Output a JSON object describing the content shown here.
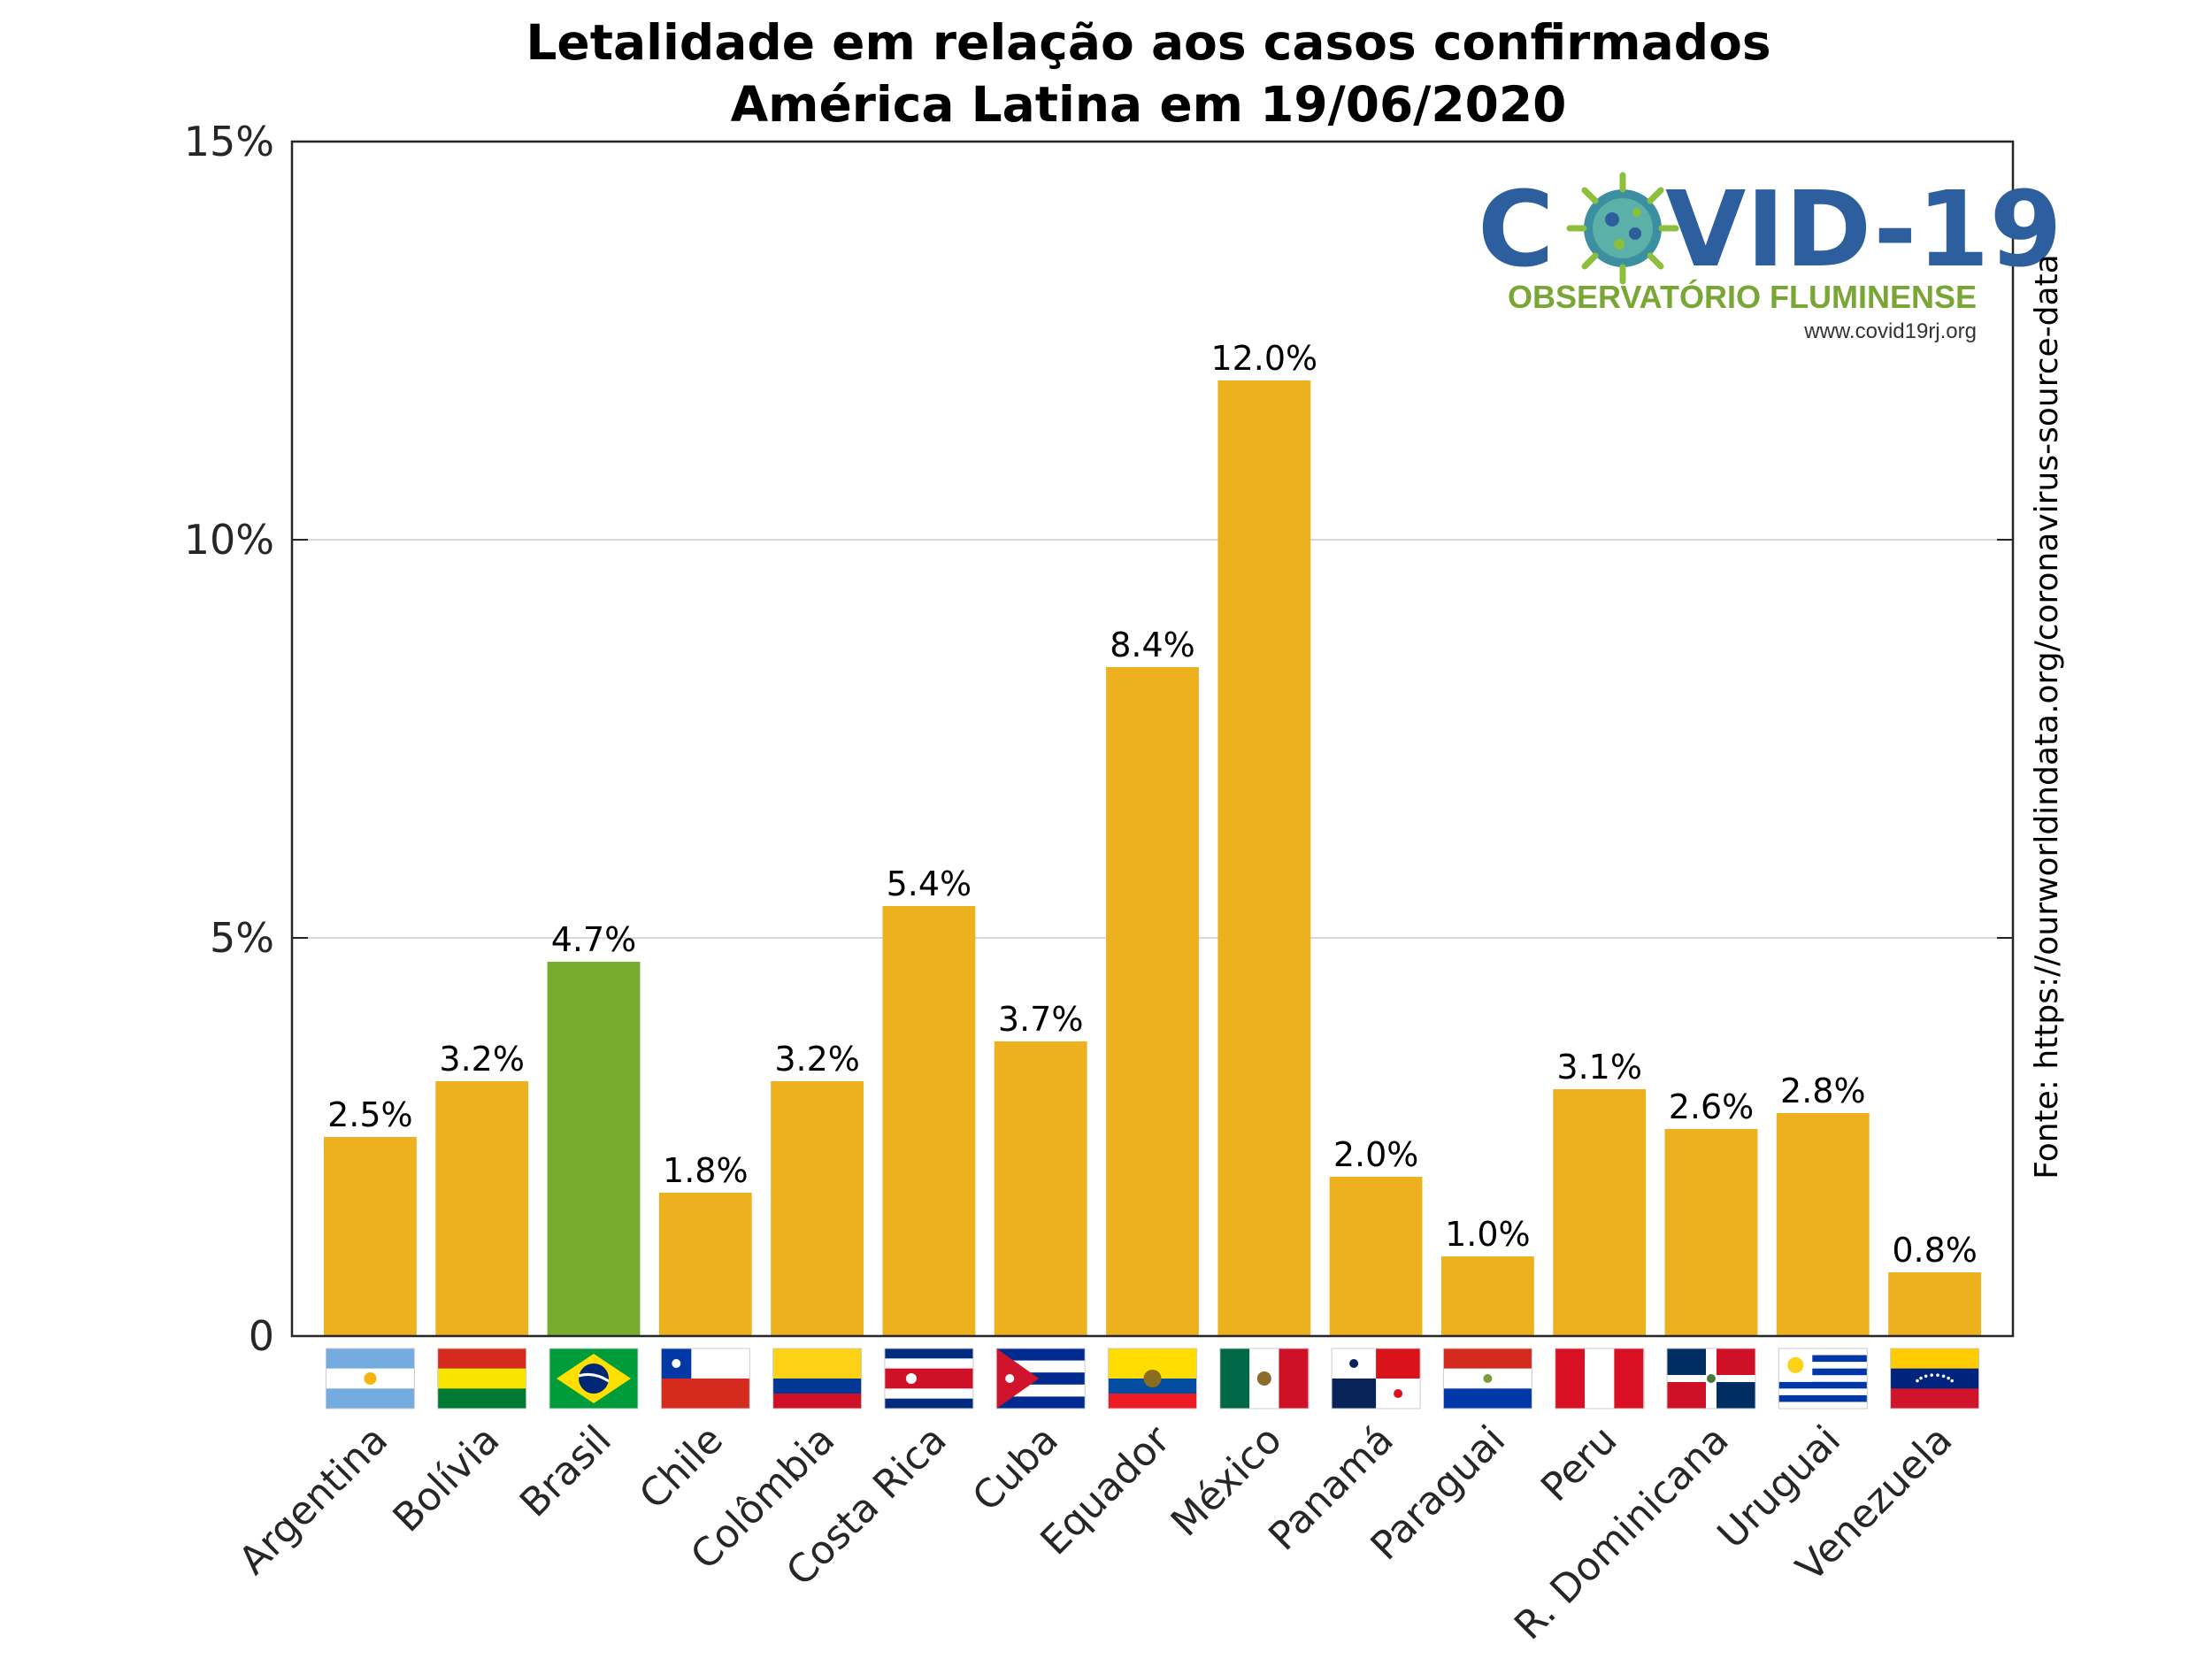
{
  "colors": {
    "bar_default": "#edb120",
    "bar_highlight": "#77ac30",
    "grid": "#d9d9d9",
    "axis": "#262626"
  },
  "logo": {
    "title_left": "C",
    "title_right": "VID-19",
    "subtitle": "OBSERVATÓRIO FLUMINENSE",
    "url": "www.covid19rj.org",
    "icon": "virus-icon"
  },
  "source_note": "Fonte: https://ourworldindata.org/coronavirus-source-data",
  "chart_data": {
    "type": "bar",
    "title": "Letalidade em relação aos casos confirmados",
    "subtitle": "América Latina em 19/06/2020",
    "xlabel": "",
    "ylabel": "",
    "ylim": [
      0,
      15
    ],
    "yticks": [
      0,
      5,
      10,
      15
    ],
    "ytick_labels": [
      "0",
      "5%",
      "10%",
      "15%"
    ],
    "grid": true,
    "highlight": "Brasil",
    "categories": [
      "Argentina",
      "Bolívia",
      "Brasil",
      "Chile",
      "Colômbia",
      "Costa Rica",
      "Cuba",
      "Equador",
      "México",
      "Panamá",
      "Paraguai",
      "Peru",
      "R. Dominicana",
      "Uruguai",
      "Venezuela"
    ],
    "values": [
      2.5,
      3.2,
      4.7,
      1.8,
      3.2,
      5.4,
      3.7,
      8.4,
      12.0,
      2.0,
      1.0,
      3.1,
      2.6,
      2.8,
      0.8
    ],
    "value_labels": [
      "2.5%",
      "3.2%",
      "4.7%",
      "1.8%",
      "3.2%",
      "5.4%",
      "3.7%",
      "8.4%",
      "12.0%",
      "2.0%",
      "1.0%",
      "3.1%",
      "2.6%",
      "2.8%",
      "0.8%"
    ],
    "flags": [
      "argentina-flag-icon",
      "bolivia-flag-icon",
      "brasil-flag-icon",
      "chile-flag-icon",
      "colombia-flag-icon",
      "costa-rica-flag-icon",
      "cuba-flag-icon",
      "equador-flag-icon",
      "mexico-flag-icon",
      "panama-flag-icon",
      "paraguai-flag-icon",
      "peru-flag-icon",
      "republica-dominicana-flag-icon",
      "uruguai-flag-icon",
      "venezuela-flag-icon"
    ]
  }
}
